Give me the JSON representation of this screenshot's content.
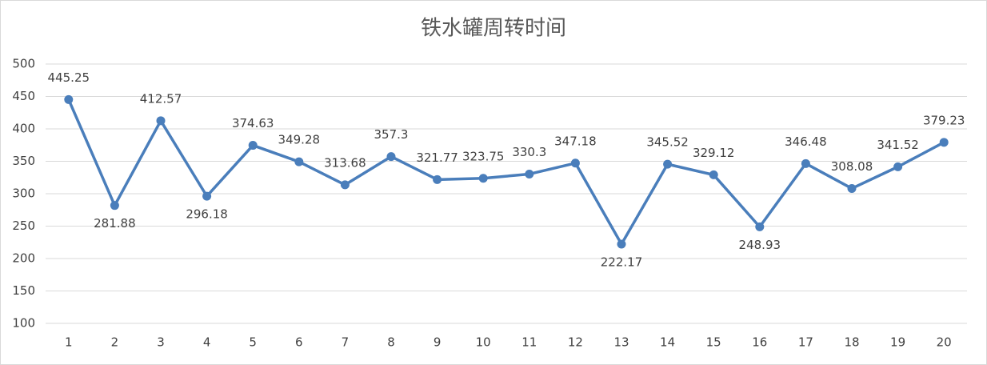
{
  "chart_data": {
    "type": "line",
    "title": "铁水罐周转时间",
    "categories": [
      "1",
      "2",
      "3",
      "4",
      "5",
      "6",
      "7",
      "8",
      "9",
      "10",
      "11",
      "12",
      "13",
      "14",
      "15",
      "16",
      "17",
      "18",
      "19",
      "20"
    ],
    "values": [
      445.25,
      281.88,
      412.57,
      296.18,
      374.63,
      349.28,
      313.68,
      357.3,
      321.77,
      323.75,
      330.3,
      347.18,
      222.17,
      345.52,
      329.12,
      248.93,
      346.48,
      308.08,
      341.52,
      379.23
    ],
    "color": "#4a7ebb",
    "ylim": [
      100,
      500
    ],
    "yticks": [
      100,
      150,
      200,
      250,
      300,
      350,
      400,
      450,
      500
    ],
    "grid": true
  }
}
